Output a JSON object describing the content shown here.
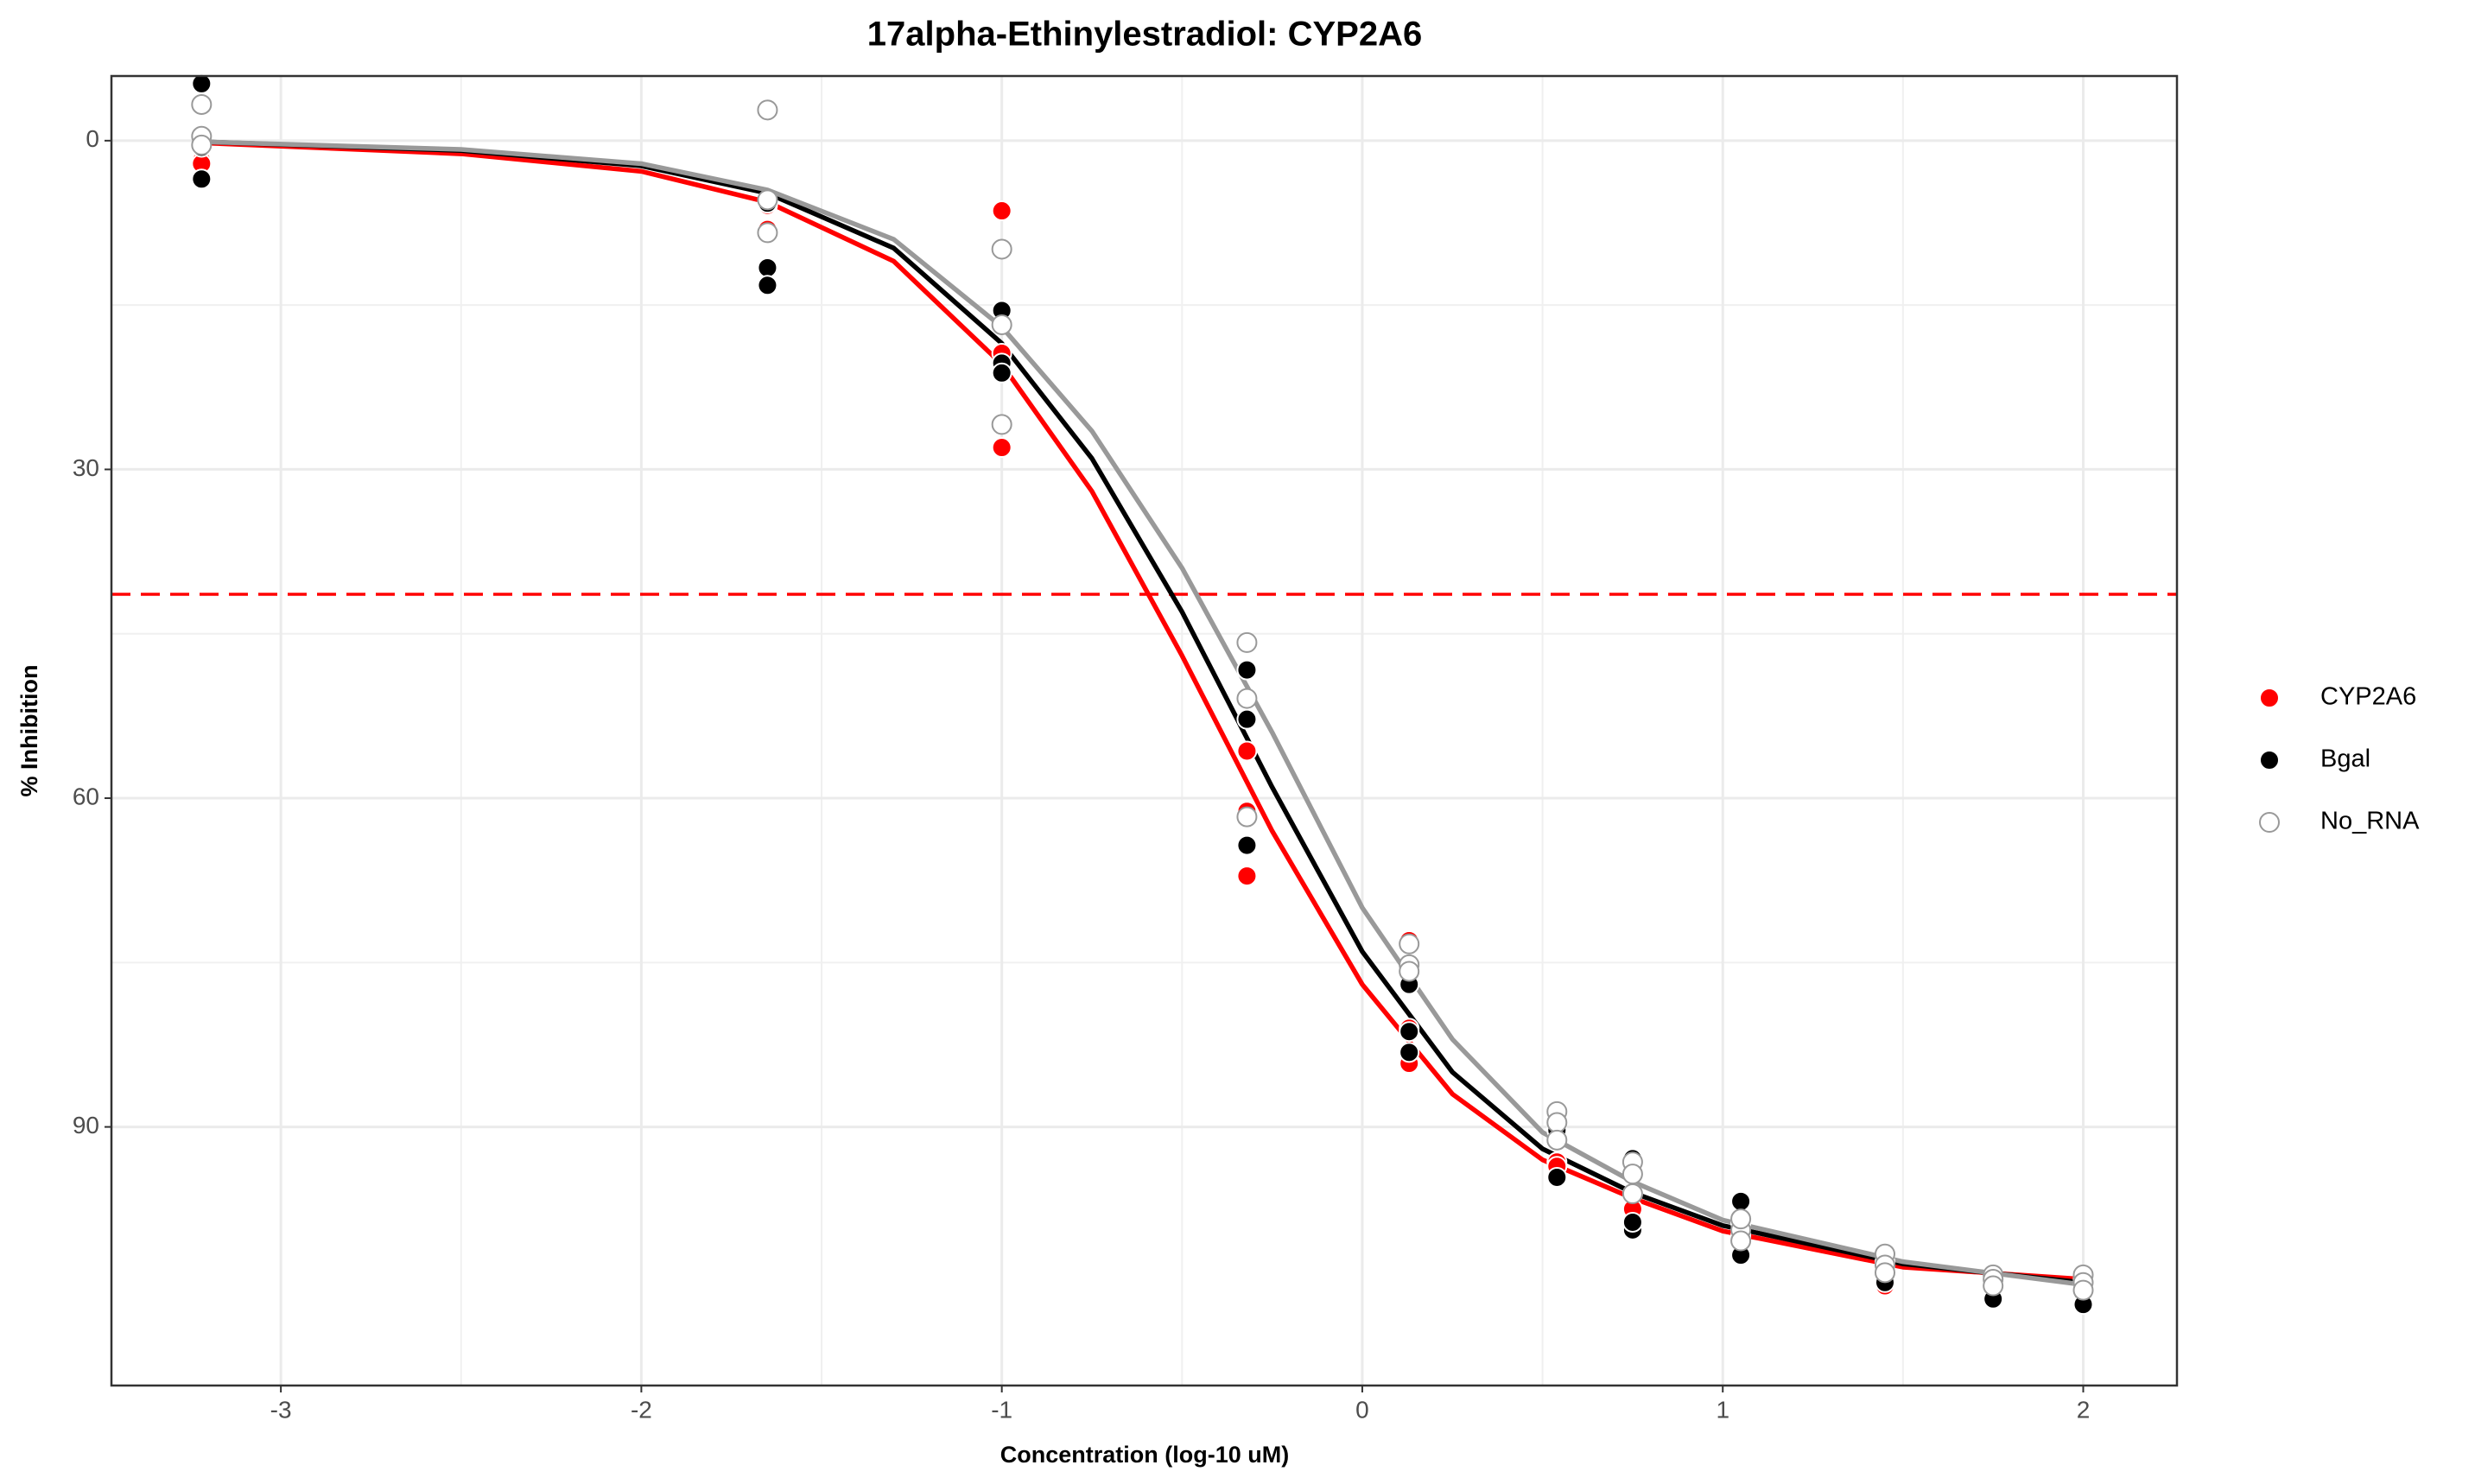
{
  "chart_data": {
    "type": "scatter",
    "title": "17alpha-Ethinylestradiol: CYP2A6",
    "x_label": "Concentration (log-10 uM)",
    "y_label": "% Inhibition",
    "xlim": [
      -3.47,
      2.26
    ],
    "ylim": [
      -5.9,
      113.6
    ],
    "y_reversed": true,
    "xticks": [
      -3,
      -2,
      -1,
      0,
      1,
      2
    ],
    "yticks": [
      0,
      30,
      60,
      90
    ],
    "grid": true,
    "legend": "right",
    "hline": {
      "value": 41.4,
      "color": "#ff0000"
    },
    "series": [
      {
        "name": "CYP2A6",
        "color": "#ff0000",
        "filled": true,
        "x": [
          -3.22,
          -3.22,
          -3.22,
          -1.65,
          -1.65,
          -1.65,
          -1,
          -1,
          -1,
          -0.32,
          -0.32,
          -0.32,
          0.13,
          0.13,
          0.13,
          0.54,
          0.54,
          0.54,
          0.75,
          0.75,
          0.75,
          1.05,
          1.05,
          1.05,
          1.45,
          1.45,
          1.45,
          1.75,
          1.75,
          1.75,
          2,
          2,
          2
        ],
        "values": [
          0.6,
          1.8,
          2.1,
          5.5,
          5.9,
          8.1,
          6.4,
          19.4,
          28,
          55.7,
          61.2,
          67.1,
          73,
          84.2,
          81,
          93.2,
          93.6,
          90.3,
          96.1,
          97.5,
          93.6,
          98.3,
          98.8,
          99.9,
          104.5,
          103,
          102.3,
          103.8,
          104.2,
          104.5,
          104.2,
          104.8,
          103.9
        ]
      },
      {
        "name": "Bgal",
        "color": "#000000",
        "filled": true,
        "x": [
          -3.22,
          -3.22,
          -3.22,
          -1.65,
          -1.65,
          -1.65,
          -1,
          -1,
          -1,
          -0.32,
          -0.32,
          -0.32,
          0.13,
          0.13,
          0.13,
          0.54,
          0.54,
          0.54,
          0.75,
          0.75,
          0.75,
          1.05,
          1.05,
          1.05,
          1.45,
          1.45,
          1.45,
          1.75,
          1.75,
          1.75,
          2,
          2,
          2
        ],
        "values": [
          -5.2,
          3.5,
          0.6,
          11.6,
          13.2,
          5.7,
          15.5,
          20.3,
          21.2,
          48.3,
          52.8,
          64.3,
          81.3,
          83.2,
          77,
          88.7,
          94.6,
          90.3,
          92.9,
          99.4,
          98.7,
          96.8,
          101.7,
          100.1,
          103.5,
          102.6,
          104.2,
          103.8,
          104.8,
          105.7,
          103.9,
          105.2,
          106.2
        ]
      },
      {
        "name": "No_RNA",
        "color": "#999999",
        "filled": false,
        "x": [
          -3.22,
          -3.22,
          -3.22,
          -1.65,
          -1.65,
          -1.65,
          -1,
          -1,
          -1,
          -0.32,
          -0.32,
          -0.32,
          0.13,
          0.13,
          0.13,
          0.54,
          0.54,
          0.54,
          0.75,
          0.75,
          0.75,
          1.05,
          1.05,
          1.05,
          1.45,
          1.45,
          1.45,
          1.75,
          1.75,
          1.75,
          2,
          2,
          2
        ],
        "values": [
          -3.3,
          -0.4,
          0.4,
          -2.8,
          5.4,
          8.4,
          9.9,
          16.8,
          25.9,
          45.8,
          50.9,
          61.7,
          73.3,
          75.2,
          75.8,
          88.6,
          89.6,
          91.2,
          93.2,
          94.3,
          96.1,
          99.4,
          100.4,
          98.4,
          101.6,
          102.6,
          103.3,
          103.5,
          103.9,
          104.5,
          103.5,
          104.2,
          104.9
        ]
      }
    ],
    "fit_x": [
      -3.22,
      -2.5,
      -2,
      -1.65,
      -1.3,
      -1,
      -0.75,
      -0.5,
      -0.25,
      0,
      0.25,
      0.5,
      0.75,
      1,
      1.5,
      2
    ],
    "fits": [
      {
        "color": "#ff0000",
        "values": [
          0.2,
          1.2,
          2.8,
          5.6,
          11,
          20.4,
          32,
          47,
          63,
          77,
          87,
          93,
          96.5,
          99.5,
          102.8,
          103.9
        ]
      },
      {
        "color": "#000000",
        "values": [
          0.1,
          0.9,
          2.3,
          4.8,
          9.8,
          18.5,
          29,
          43,
          59,
          74,
          85,
          92,
          96,
          99,
          102.5,
          104.2
        ]
      },
      {
        "color": "#999999",
        "values": [
          0.1,
          0.8,
          2.1,
          4.5,
          9,
          17,
          26.5,
          39,
          54,
          70,
          82,
          90.5,
          95,
          98.5,
          102.3,
          104.4
        ]
      }
    ]
  }
}
